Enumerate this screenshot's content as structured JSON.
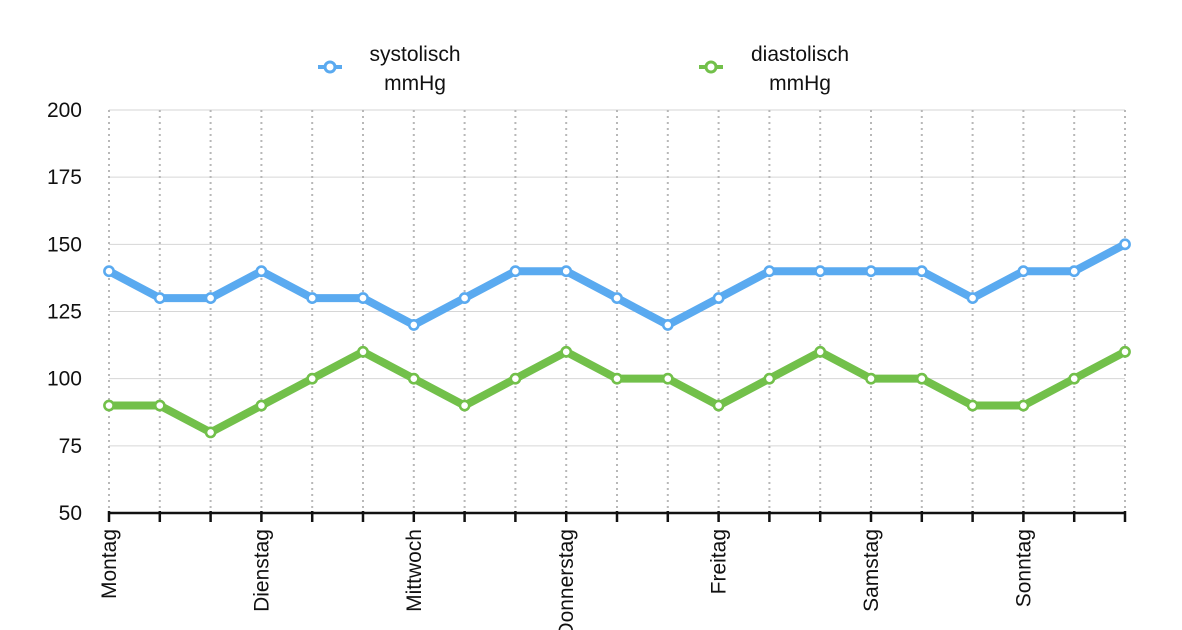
{
  "chart_data": {
    "type": "line",
    "title": "",
    "xlabel": "",
    "ylabel": "",
    "ylim": [
      50,
      200
    ],
    "yticks": [
      50,
      75,
      100,
      125,
      150,
      175,
      200
    ],
    "grid": true,
    "legend_position": "top",
    "x_count": 21,
    "x_labels": [
      {
        "index": 0,
        "label": "Montag"
      },
      {
        "index": 3,
        "label": "Dienstag"
      },
      {
        "index": 6,
        "label": "Mittwoch"
      },
      {
        "index": 9,
        "label": "Donnerstag"
      },
      {
        "index": 12,
        "label": "Freitag"
      },
      {
        "index": 15,
        "label": "Samstag"
      },
      {
        "index": 18,
        "label": "Sonntag"
      }
    ],
    "series": [
      {
        "name": "systolisch mmHg",
        "legend_lines": [
          "systolisch",
          "mmHg"
        ],
        "color": "#5aaaf0",
        "values": [
          140,
          130,
          130,
          140,
          130,
          130,
          120,
          130,
          140,
          140,
          130,
          120,
          130,
          140,
          140,
          140,
          140,
          130,
          140,
          140,
          150
        ]
      },
      {
        "name": "diastolisch mmHg",
        "legend_lines": [
          "diastolisch",
          "mmHg"
        ],
        "color": "#72c04a",
        "values": [
          90,
          90,
          80,
          90,
          100,
          110,
          100,
          90,
          100,
          110,
          100,
          100,
          90,
          100,
          110,
          100,
          100,
          90,
          90,
          100,
          110
        ]
      }
    ]
  }
}
